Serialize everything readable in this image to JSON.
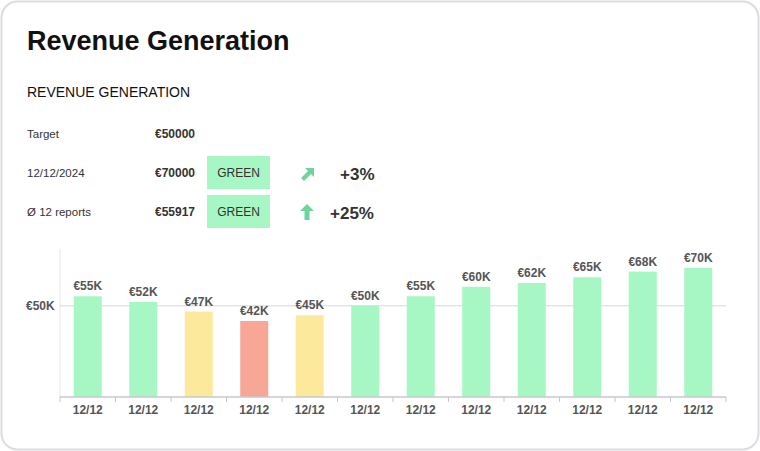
{
  "title": "Revenue Generation",
  "subtitle": "REVENUE GENERATION",
  "summary": [
    {
      "label": "Target",
      "amount": "€50000"
    },
    {
      "label": "12/12/2024",
      "amount": "€70000",
      "status": "GREEN",
      "change": "+3%"
    },
    {
      "label": "Ø 12 reports",
      "amount": "€55917",
      "status": "GREEN",
      "change": "+25%"
    }
  ],
  "chart_data": {
    "type": "bar",
    "categories": [
      "12/12",
      "12/12",
      "12/12",
      "12/12",
      "12/12",
      "12/12",
      "12/12",
      "12/12",
      "12/12",
      "12/12",
      "12/12",
      "12/12"
    ],
    "values": [
      55000,
      52000,
      47000,
      42000,
      45000,
      50000,
      55000,
      60000,
      62000,
      65000,
      68000,
      70000
    ],
    "value_labels": [
      "€55K",
      "€52K",
      "€47K",
      "€42K",
      "€45K",
      "€50K",
      "€55K",
      "€60K",
      "€62K",
      "€65K",
      "€68K",
      "€70K"
    ],
    "colors": [
      "#a6f7c3",
      "#a6f7c3",
      "#fde99c",
      "#f8a797",
      "#fde99c",
      "#a6f7c3",
      "#a6f7c3",
      "#a6f7c3",
      "#a6f7c3",
      "#a6f7c3",
      "#a6f7c3",
      "#a6f7c3"
    ],
    "ylim": [
      2000,
      80000
    ],
    "yticks": [
      {
        "value": 50000,
        "label": "€50K"
      }
    ],
    "grid": true,
    "data_labels": true
  }
}
